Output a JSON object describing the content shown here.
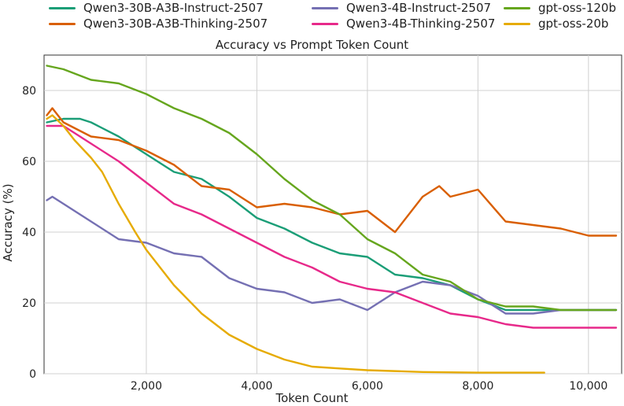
{
  "chart_data": {
    "type": "line",
    "title": "Accuracy vs Prompt Token Count",
    "xlabel": "Token Count",
    "ylabel": "Accuracy (%)",
    "xlim": [
      150,
      10600
    ],
    "ylim": [
      0,
      90
    ],
    "x_ticks": [
      2000,
      4000,
      6000,
      8000,
      10000
    ],
    "x_tick_labels": [
      "2,000",
      "4,000",
      "6,000",
      "8,000",
      "10,000"
    ],
    "y_ticks": [
      0,
      20,
      40,
      60,
      80
    ],
    "y_tick_labels": [
      "0",
      "20",
      "40",
      "60",
      "80"
    ],
    "grid": true,
    "legend_position": "top",
    "series": [
      {
        "name": "Qwen3-30B-A3B-Instruct-2507",
        "color": "#1b9e77",
        "x": [
          200,
          500,
          800,
          1000,
          1500,
          2000,
          2500,
          3000,
          3500,
          4000,
          4500,
          5000,
          5500,
          6000,
          6500,
          7000,
          7500,
          8000,
          8500,
          9000,
          9500,
          10000,
          10500
        ],
        "y": [
          71,
          72,
          72,
          71,
          67,
          62,
          57,
          55,
          50,
          44,
          41,
          37,
          34,
          33,
          28,
          27,
          25,
          21,
          18,
          18,
          18,
          18,
          18
        ]
      },
      {
        "name": "Qwen3-30B-A3B-Thinking-2507",
        "color": "#d95f02",
        "x": [
          200,
          300,
          500,
          1000,
          1500,
          2000,
          2500,
          3000,
          3500,
          4000,
          4500,
          5000,
          5500,
          6000,
          6500,
          7000,
          7300,
          7500,
          8000,
          8500,
          9000,
          9500,
          10000,
          10500
        ],
        "y": [
          73,
          75,
          71,
          67,
          66,
          63,
          59,
          53,
          52,
          47,
          48,
          47,
          45,
          46,
          40,
          50,
          53,
          50,
          52,
          43,
          42,
          41,
          39,
          39
        ]
      },
      {
        "name": "Qwen3-4B-Instruct-2507",
        "color": "#7570b3",
        "x": [
          200,
          300,
          500,
          1000,
          1500,
          2000,
          2500,
          3000,
          3500,
          4000,
          4500,
          5000,
          5500,
          6000,
          6500,
          7000,
          7500,
          8000,
          8500,
          9000,
          9500,
          10000,
          10500
        ],
        "y": [
          49,
          50,
          48,
          43,
          38,
          37,
          34,
          33,
          27,
          24,
          23,
          20,
          21,
          18,
          23,
          26,
          25,
          22,
          17,
          17,
          18,
          18,
          18
        ]
      },
      {
        "name": "Qwen3-4B-Thinking-2507",
        "color": "#e7298a",
        "x": [
          200,
          500,
          1000,
          1500,
          2000,
          2500,
          3000,
          3500,
          4000,
          4500,
          5000,
          5500,
          6000,
          6500,
          7000,
          7500,
          8000,
          8500,
          9000,
          9500,
          10000,
          10500
        ],
        "y": [
          70,
          70,
          65,
          60,
          54,
          48,
          45,
          41,
          37,
          33,
          30,
          26,
          24,
          23,
          20,
          17,
          16,
          14,
          13,
          13,
          13,
          13
        ]
      },
      {
        "name": "gpt-oss-120b",
        "color": "#66a61e",
        "x": [
          200,
          500,
          1000,
          1500,
          2000,
          2500,
          3000,
          3500,
          4000,
          4500,
          5000,
          5500,
          6000,
          6500,
          7000,
          7500,
          8000,
          8500,
          9000,
          9500,
          10000,
          10500
        ],
        "y": [
          87,
          86,
          83,
          82,
          79,
          75,
          72,
          68,
          62,
          55,
          49,
          45,
          38,
          34,
          28,
          26,
          21,
          19,
          19,
          18,
          18,
          18
        ]
      },
      {
        "name": "gpt-oss-20b",
        "color": "#e6ab02",
        "x": [
          200,
          300,
          500,
          700,
          1000,
          1200,
          1500,
          1800,
          2000,
          2500,
          3000,
          3500,
          4000,
          4500,
          5000,
          5500,
          6000,
          7000,
          8000,
          9200
        ],
        "y": [
          72,
          73,
          70,
          66,
          61,
          57,
          48,
          40,
          35,
          25,
          17,
          11,
          7,
          4,
          2,
          1.5,
          1,
          0.5,
          0.3,
          0.3
        ]
      }
    ]
  }
}
